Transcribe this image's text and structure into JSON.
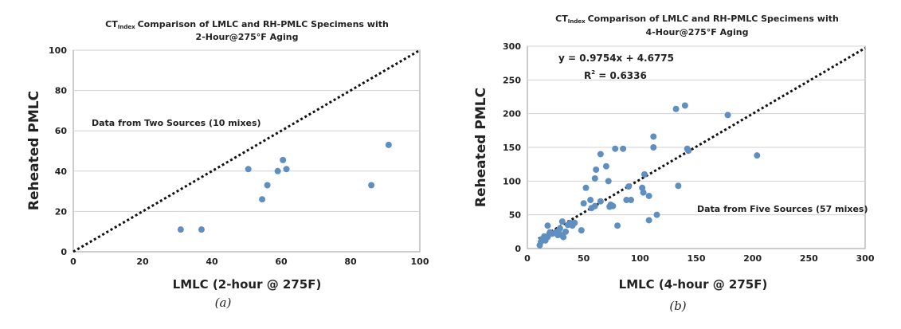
{
  "chart_data": [
    {
      "type": "scatter",
      "title_sub": "Index",
      "title_main": "Comparison of LMLC and RH-PMLC Specimens with",
      "title_line2": "2-Hour@275°F Aging",
      "xlabel": "LMLC (2-hour @ 275F)",
      "ylabel": "Reheated PMLC",
      "caption": "(a)",
      "annotation": "Data from Two Sources (10 mixes)",
      "xlim": [
        0,
        100
      ],
      "ylim": [
        0,
        100
      ],
      "x_ticks": [
        "0",
        "20",
        "40",
        "60",
        "80",
        "100"
      ],
      "y_ticks": [
        "0",
        "20",
        "40",
        "60",
        "80",
        "100"
      ],
      "x_tick_values": [
        0,
        20,
        40,
        60,
        80,
        100
      ],
      "y_tick_values": [
        0,
        20,
        40,
        60,
        80,
        100
      ],
      "grid": "horizontal",
      "reference_line": "line of equality",
      "series": [
        {
          "points": [
            [
              31,
              11
            ],
            [
              37,
              11
            ],
            [
              50.5,
              41
            ],
            [
              54.5,
              26
            ],
            [
              56,
              33
            ],
            [
              59,
              40
            ],
            [
              60.5,
              45.5
            ],
            [
              61.5,
              41
            ],
            [
              86,
              33
            ],
            [
              91,
              53
            ]
          ]
        }
      ]
    },
    {
      "type": "scatter",
      "title_sub": "Index",
      "title_main": "Comparison of LMLC and RH-PMLC Specimens with",
      "title_line2": "4-Hour@275°F Aging",
      "xlabel": "LMLC (4-hour @ 275F)",
      "ylabel": "Reheated PMLC",
      "caption": "(b)",
      "annotation": "Data from Five Sources (57 mixes)",
      "equation": "y = 0.9754x + 4.6775",
      "r2_label": "R",
      "r2_sup": "2",
      "r2_value": " = 0.6336",
      "xlim": [
        0,
        300
      ],
      "ylim": [
        0,
        300
      ],
      "x_ticks": [
        "0",
        "50",
        "100",
        "150",
        "200",
        "250",
        "300"
      ],
      "y_ticks": [
        "0",
        "50",
        "100",
        "150",
        "200",
        "250",
        "300"
      ],
      "x_tick_values": [
        0,
        50,
        100,
        150,
        200,
        250,
        300
      ],
      "y_tick_values": [
        0,
        50,
        100,
        150,
        200,
        250,
        300
      ],
      "grid": "horizontal",
      "reference_line": "linear trendline",
      "series": [
        {
          "points": [
            [
              11,
              5
            ],
            [
              12,
              10
            ],
            [
              13,
              14
            ],
            [
              15,
              18
            ],
            [
              16,
              12
            ],
            [
              18,
              17
            ],
            [
              18,
              34
            ],
            [
              20,
              24
            ],
            [
              22,
              22
            ],
            [
              25,
              24
            ],
            [
              27,
              20
            ],
            [
              28,
              27
            ],
            [
              29,
              30
            ],
            [
              30,
              20
            ],
            [
              31,
              40
            ],
            [
              32,
              17
            ],
            [
              34,
              25
            ],
            [
              36,
              35
            ],
            [
              38,
              38
            ],
            [
              40,
              34
            ],
            [
              42,
              38
            ],
            [
              48,
              27
            ],
            [
              50,
              67
            ],
            [
              52,
              90
            ],
            [
              56,
              72
            ],
            [
              57,
              60
            ],
            [
              60,
              63
            ],
            [
              60,
              104
            ],
            [
              61,
              117
            ],
            [
              65,
              70
            ],
            [
              65,
              140
            ],
            [
              70,
              122
            ],
            [
              72,
              100
            ],
            [
              73,
              62
            ],
            [
              74,
              65
            ],
            [
              76,
              63
            ],
            [
              78,
              148
            ],
            [
              80,
              34
            ],
            [
              85,
              148
            ],
            [
              88,
              72
            ],
            [
              90,
              92
            ],
            [
              92,
              72
            ],
            [
              102,
              90
            ],
            [
              103,
              83
            ],
            [
              104,
              110
            ],
            [
              108,
              42
            ],
            [
              108,
              78
            ],
            [
              112,
              166
            ],
            [
              115,
              50
            ],
            [
              132,
              207
            ],
            [
              134,
              93
            ],
            [
              140,
              212
            ],
            [
              142,
              148
            ],
            [
              143,
              145
            ],
            [
              178,
              198
            ],
            [
              204,
              138
            ],
            [
              112,
              150
            ]
          ]
        }
      ]
    }
  ]
}
